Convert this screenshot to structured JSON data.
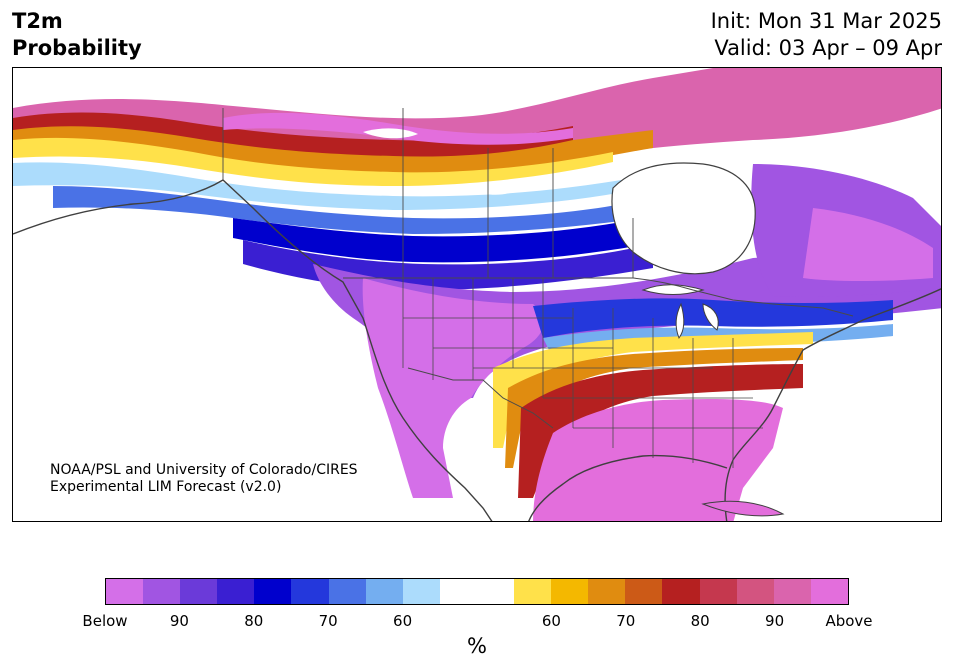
{
  "header": {
    "title_line1": "T2m",
    "title_line2": "Probability",
    "init": "Init: Mon 31 Mar 2025",
    "valid": "Valid: 03 Apr – 09 Apr"
  },
  "credit": {
    "line1": "NOAA/PSL and University of Colorado/CIRES",
    "line2": "Experimental LIM Forecast (v2.0)"
  },
  "colorbar": {
    "colors": [
      "#d46fe8",
      "#a155e2",
      "#6b3ad9",
      "#3a1fd2",
      "#0000cd",
      "#2438dc",
      "#4a72e6",
      "#74aef0",
      "#acdcfc",
      "#ffffff",
      "#ffffff",
      "#ffe14a",
      "#f4b800",
      "#e08c10",
      "#cc5a17",
      "#b52020",
      "#c5384e",
      "#d35480",
      "#da64ad",
      "#e36edc"
    ],
    "tick_labels": [
      "Below",
      "90",
      "80",
      "70",
      "60",
      "60",
      "70",
      "80",
      "90",
      "Above"
    ],
    "unit": "%"
  },
  "colors": {
    "coast": "#404040",
    "border": "#4a4a4a"
  }
}
